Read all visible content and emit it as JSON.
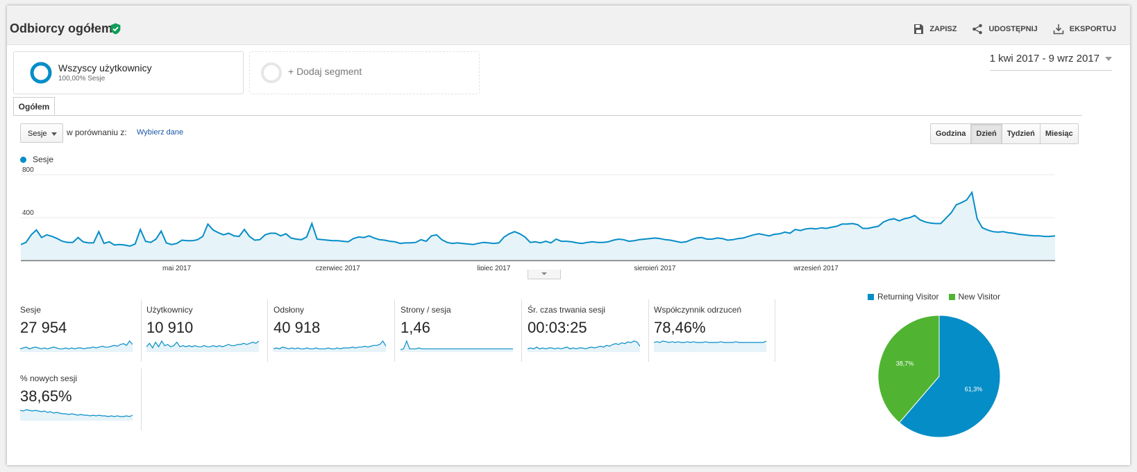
{
  "header": {
    "title": "Odbiorcy ogółem",
    "actions": [
      {
        "label": "ZAPISZ",
        "icon": "save-icon"
      },
      {
        "label": "UDOSTĘPNIJ",
        "icon": "share-icon"
      },
      {
        "label": "EKSPORTUJ",
        "icon": "export-icon"
      }
    ]
  },
  "segments": {
    "active": {
      "name": "Wszyscy użytkownicy",
      "sub": "100,00% Sesje"
    },
    "add": "+ Dodaj segment"
  },
  "date_range": "1 kwi 2017 - 9 wrz 2017",
  "tabs": [
    "Ogółem"
  ],
  "controls": {
    "metric": "Sesje",
    "compare_label": "w porównaniu z:",
    "compare_link": "Wybierz dane",
    "granularity": [
      "Godzina",
      "Dzień",
      "Tydzień",
      "Miesiąc"
    ],
    "granularity_active": "Dzień"
  },
  "colors": {
    "accent": "#058dc7",
    "fill": "#e6f3f9",
    "new_visitor": "#50b432",
    "returning_visitor": "#058dc7"
  },
  "chart_data": [
    {
      "type": "area",
      "series": [
        {
          "name": "Sesje",
          "values": [
            150,
            170,
            240,
            285,
            215,
            240,
            225,
            205,
            180,
            170,
            170,
            215,
            175,
            165,
            165,
            270,
            160,
            175,
            145,
            150,
            145,
            135,
            155,
            290,
            180,
            170,
            200,
            275,
            165,
            150,
            160,
            190,
            185,
            185,
            195,
            225,
            340,
            285,
            260,
            240,
            255,
            230,
            225,
            290,
            225,
            190,
            195,
            240,
            255,
            255,
            230,
            250,
            210,
            200,
            195,
            220,
            345,
            200,
            195,
            190,
            185,
            185,
            180,
            175,
            205,
            220,
            215,
            230,
            210,
            195,
            190,
            180,
            175,
            160,
            165,
            165,
            170,
            195,
            180,
            230,
            240,
            195,
            170,
            160,
            165,
            160,
            155,
            150,
            160,
            170,
            165,
            160,
            165,
            220,
            250,
            270,
            250,
            220,
            170,
            175,
            165,
            180,
            165,
            200,
            180,
            180,
            175,
            165,
            160,
            170,
            175,
            170,
            170,
            175,
            190,
            200,
            195,
            180,
            185,
            195,
            200,
            205,
            210,
            205,
            195,
            190,
            180,
            170,
            175,
            195,
            210,
            215,
            200,
            200,
            210,
            205,
            190,
            195,
            205,
            210,
            225,
            240,
            250,
            240,
            230,
            245,
            250,
            265,
            255,
            290,
            280,
            295,
            300,
            295,
            305,
            300,
            310,
            320,
            340,
            340,
            345,
            335,
            300,
            300,
            310,
            320,
            360,
            380,
            390,
            370,
            390,
            400,
            420,
            380,
            360,
            350,
            345,
            345,
            395,
            445,
            520,
            540,
            565,
            635,
            390,
            305,
            285,
            270,
            265,
            270,
            260,
            255,
            245,
            240,
            235,
            230,
            230,
            225,
            225,
            230
          ]
        }
      ],
      "x_ticks": [
        "maj 2017",
        "czerwiec 2017",
        "lipiec 2017",
        "sierpień 2017",
        "wrzesień 2017"
      ],
      "y_ticks": [
        800,
        400
      ],
      "ylim": [
        0,
        800
      ]
    },
    {
      "type": "pie",
      "slices": [
        {
          "name": "Returning Visitor",
          "value": 61.3,
          "label": "61,3%"
        },
        {
          "name": "New Visitor",
          "value": 38.7,
          "label": "38,7%"
        }
      ]
    }
  ],
  "scorecards": [
    {
      "label": "Sesje",
      "value": "27 954",
      "spark": [
        3,
        4,
        5,
        3,
        4,
        5,
        4,
        3,
        4,
        3,
        4,
        5,
        4,
        3,
        3,
        4,
        3,
        4,
        3,
        4,
        4,
        3,
        4,
        4,
        5,
        4,
        5,
        6,
        5,
        5,
        6,
        7,
        6,
        8,
        9,
        7,
        12,
        8
      ]
    },
    {
      "label": "Użytkownicy",
      "value": "10 910",
      "spark": [
        4,
        7,
        3,
        8,
        4,
        9,
        5,
        6,
        4,
        5,
        8,
        4,
        5,
        4,
        5,
        4,
        5,
        4,
        4,
        5,
        4,
        4,
        5,
        4,
        5,
        4,
        5,
        6,
        5,
        5,
        6,
        6,
        7,
        6,
        7,
        8,
        7,
        9
      ]
    },
    {
      "label": "Odsłony",
      "value": "40 918",
      "spark": [
        3,
        4,
        3,
        5,
        4,
        3,
        4,
        3,
        4,
        3,
        3,
        4,
        3,
        3,
        4,
        3,
        3,
        3,
        4,
        3,
        3,
        4,
        3,
        4,
        4,
        4,
        5,
        4,
        5,
        5,
        6,
        5,
        6,
        7,
        7,
        8,
        12,
        6
      ]
    },
    {
      "label": "Strony / sesja",
      "value": "1,46",
      "spark": [
        2,
        3,
        12,
        3,
        3,
        3,
        4,
        3,
        3,
        3,
        3,
        3,
        3,
        3,
        3,
        3,
        3,
        3,
        3,
        3,
        3,
        3,
        3,
        3,
        3,
        3,
        3,
        3,
        3,
        3,
        3,
        3,
        3,
        3,
        3,
        3,
        3,
        3
      ]
    },
    {
      "label": "Śr. czas trwania sesji",
      "value": "00:03:25",
      "spark": [
        3,
        4,
        3,
        5,
        3,
        4,
        3,
        4,
        4,
        3,
        4,
        3,
        4,
        5,
        3,
        4,
        3,
        4,
        4,
        3,
        4,
        5,
        4,
        5,
        6,
        5,
        7,
        6,
        8,
        9,
        8,
        10,
        9,
        11,
        10,
        12,
        11,
        6
      ]
    },
    {
      "label": "Współczynnik odrzuceń",
      "value": "78,46%",
      "spark": [
        12,
        13,
        12,
        14,
        13,
        12,
        13,
        12,
        13,
        12,
        12,
        13,
        12,
        13,
        12,
        12,
        12,
        13,
        12,
        12,
        12,
        12,
        13,
        12,
        12,
        12,
        12,
        13,
        12,
        12,
        12,
        12,
        12,
        12,
        12,
        12,
        12,
        14
      ]
    },
    {
      "label": "% nowych sesji",
      "value": "38,65%",
      "spark": [
        14,
        13,
        15,
        14,
        13,
        14,
        13,
        12,
        13,
        11,
        12,
        10,
        11,
        10,
        9,
        9,
        8,
        9,
        8,
        7,
        8,
        7,
        7,
        6,
        7,
        6,
        7,
        6,
        6,
        5,
        6,
        5,
        6,
        5,
        5,
        6,
        5,
        7
      ]
    }
  ]
}
